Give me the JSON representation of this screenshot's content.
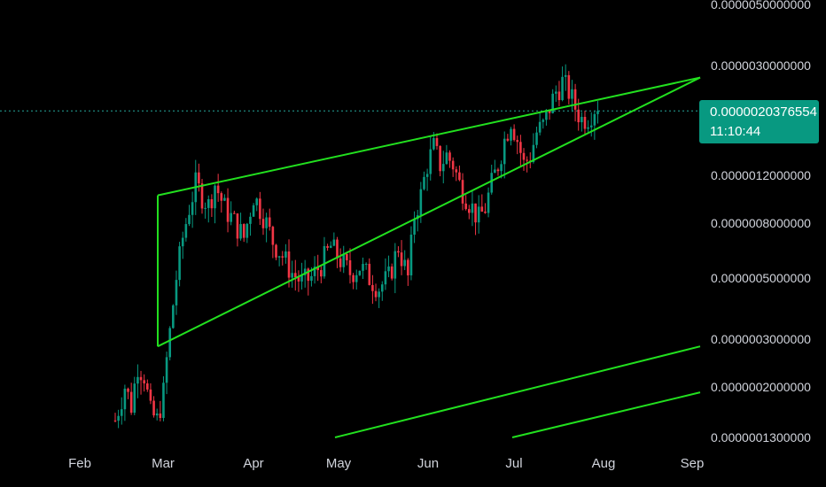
{
  "colors": {
    "background": "#000000",
    "up": "#089981",
    "down": "#f23645",
    "trendline": "#22e01f",
    "last_price_line": "#26a69a",
    "axis_text": "#d1d4dc"
  },
  "price_axis": {
    "labels": [
      "0.0000050000000",
      "0.0000030000000",
      "0.0000012000000",
      "0.0000008000000",
      "0.0000005000000",
      "0.0000003000000",
      "0.0000002000000",
      "0.0000001300000"
    ],
    "last_price": "0.0000020376554",
    "countdown": "11:10:44"
  },
  "time_axis": {
    "labels": [
      "Feb",
      "Mar",
      "Apr",
      "May",
      "Jun",
      "Jul",
      "Aug",
      "Sep"
    ]
  },
  "chart_data": {
    "type": "candlestick",
    "scale": "log",
    "x_range": [
      "Feb",
      "Sep"
    ],
    "y_range": [
      1.3e-07,
      5e-06
    ],
    "last_price": 2.0376554e-06,
    "grid": false,
    "annotations": [
      {
        "type": "trendline",
        "name": "wedge-upper",
        "from": {
          "date": "Mar",
          "value": 1e-06
        },
        "to": {
          "date": "Sep",
          "value": 2.7e-06
        }
      },
      {
        "type": "trendline",
        "name": "wedge-lower",
        "from": {
          "date": "Mar",
          "value": 2.8e-07
        },
        "to": {
          "date": "Sep",
          "value": 2.7e-06
        }
      },
      {
        "type": "trendline",
        "name": "support-channel-upper",
        "from": {
          "date": "May",
          "value": 1.3e-07
        },
        "to": {
          "date": "Sep",
          "value": 2.8e-07
        }
      },
      {
        "type": "trendline",
        "name": "support-channel-lower",
        "from": {
          "date": "Jul",
          "value": 1.3e-07
        },
        "to": {
          "date": "Sep",
          "value": 1.9e-07
        }
      }
    ],
    "series": [
      {
        "path": [
          [
            0,
            1.5e-07
          ],
          [
            3,
            2e-07
          ],
          [
            5,
            1.7e-07
          ],
          [
            7,
            2.4e-07
          ],
          [
            9,
            2.2e-07
          ],
          [
            11,
            1.6e-07
          ],
          [
            13,
            1.5e-07
          ],
          [
            15,
            1.9e-07
          ],
          [
            16,
            2.5e-07
          ],
          [
            18,
            4e-07
          ],
          [
            19,
            5e-07
          ],
          [
            21,
            7e-07
          ],
          [
            23,
            9e-07
          ],
          [
            25,
            1.1e-06
          ],
          [
            27,
            1e-06
          ],
          [
            29,
            9.2e-07
          ],
          [
            31,
            1.1e-06
          ],
          [
            34,
            9e-07
          ],
          [
            37,
            8e-07
          ],
          [
            40,
            7e-07
          ],
          [
            43,
            1e-06
          ],
          [
            46,
            8.5e-07
          ],
          [
            49,
            6.8e-07
          ],
          [
            52,
            6e-07
          ],
          [
            55,
            5.2e-07
          ],
          [
            58,
            4.8e-07
          ],
          [
            61,
            5e-07
          ],
          [
            64,
            5.6e-07
          ],
          [
            67,
            6.5e-07
          ],
          [
            70,
            5.8e-07
          ],
          [
            73,
            5.2e-07
          ],
          [
            76,
            5.5e-07
          ],
          [
            79,
            5e-07
          ],
          [
            82,
            4.6e-07
          ],
          [
            85,
            5e-07
          ],
          [
            88,
            6.5e-07
          ],
          [
            91,
            5e-07
          ],
          [
            93,
            8.5e-07
          ],
          [
            95,
            1e-06
          ],
          [
            97,
            1.3e-06
          ],
          [
            99,
            1.5e-06
          ],
          [
            101,
            1.3e-06
          ],
          [
            103,
            1.4e-06
          ],
          [
            105,
            1.3e-06
          ],
          [
            107,
            1.1e-06
          ],
          [
            109,
            1e-06
          ],
          [
            111,
            9e-07
          ],
          [
            113,
            8.2e-07
          ],
          [
            115,
            9e-07
          ],
          [
            117,
            1.1e-06
          ],
          [
            119,
            1.3e-06
          ],
          [
            121,
            1.6e-06
          ],
          [
            123,
            1.9e-06
          ],
          [
            125,
            1.6e-06
          ],
          [
            127,
            1.3e-06
          ],
          [
            129,
            1.4e-06
          ],
          [
            131,
            1.7e-06
          ],
          [
            133,
            1.8e-06
          ],
          [
            135,
            2.1e-06
          ],
          [
            137,
            2.4e-06
          ],
          [
            139,
            2.6e-06
          ],
          [
            141,
            2.4e-06
          ],
          [
            143,
            2.1e-06
          ],
          [
            145,
            1.9e-06
          ],
          [
            147,
            1.95e-06
          ],
          [
            149,
            2.1e-06
          ],
          [
            150,
            2.0376554e-06
          ]
        ]
      }
    ]
  }
}
